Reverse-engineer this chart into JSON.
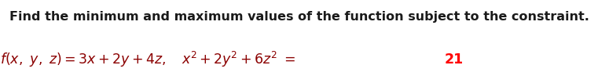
{
  "line1": "Find the minimum and maximum values of the function subject to the constraint.",
  "line1_color": "#1a1a1a",
  "math_color": "#8B0000",
  "highlight_color": "#FF0000",
  "background_color": "#ffffff",
  "font_size_line1": 11.5,
  "font_size_line2": 12.5,
  "fig_width": 7.61,
  "fig_height": 0.97,
  "dpi": 100
}
